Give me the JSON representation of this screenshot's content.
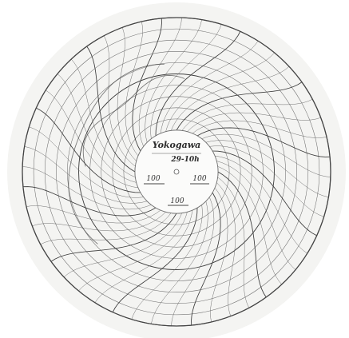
{
  "chart": {
    "type": "circular-recorder-chart",
    "rings": 10,
    "arc_lines": 48,
    "colors": {
      "paper": "#f4f4f2",
      "grid": "#6f6f6f",
      "grid_bold": "#3c3c3c",
      "ink": "#2a2a2a"
    }
  },
  "hub": {
    "logo_text": "Yokogawa",
    "chart_number": "29-10h",
    "left_mark": "100",
    "right_mark": "100",
    "bottom_mark": "100"
  }
}
